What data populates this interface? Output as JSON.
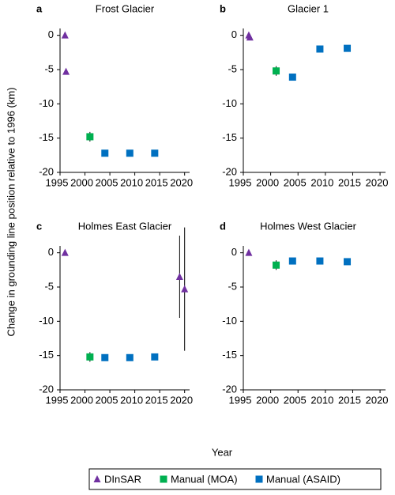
{
  "ylabel": "Change in grounding line position relative to 1996 (km)",
  "xlabel": "Year",
  "chart_data": [
    {
      "type": "scatter",
      "letter": "a",
      "title": "Frost Glacier",
      "xlim": [
        1995,
        2021
      ],
      "ylim": [
        -20,
        1
      ],
      "xticks": [
        1995,
        2000,
        2005,
        2010,
        2015,
        2020
      ],
      "yticks": [
        0,
        -5,
        -10,
        -15,
        -20
      ],
      "series": [
        {
          "name": "DInSAR",
          "color": "#7030a0",
          "marker": "triangle",
          "x": [
            1996,
            1996.2
          ],
          "values": [
            0,
            -5.3
          ],
          "errors": [
            0,
            0
          ]
        },
        {
          "name": "Manual (MOA)",
          "color": "#00b050",
          "marker": "square",
          "x": [
            2001
          ],
          "values": [
            -14.8
          ],
          "errors": [
            0.7
          ]
        },
        {
          "name": "Manual (ASAID)",
          "color": "#0070c0",
          "marker": "square",
          "x": [
            2004,
            2009,
            2014
          ],
          "values": [
            -17.2,
            -17.2,
            -17.2
          ],
          "errors": [
            0.4,
            0.4,
            0.4
          ]
        }
      ]
    },
    {
      "type": "scatter",
      "letter": "b",
      "title": "Glacier 1",
      "xlim": [
        1995,
        2021
      ],
      "ylim": [
        -20,
        1
      ],
      "xticks": [
        1995,
        2000,
        2005,
        2010,
        2015,
        2020
      ],
      "yticks": [
        0,
        -5,
        -10,
        -15,
        -20
      ],
      "series": [
        {
          "name": "DInSAR",
          "color": "#7030a0",
          "marker": "triangle",
          "x": [
            1996,
            1996.2
          ],
          "values": [
            0,
            -0.3
          ],
          "errors": [
            0,
            0
          ]
        },
        {
          "name": "Manual (MOA)",
          "color": "#00b050",
          "marker": "square",
          "x": [
            2001
          ],
          "values": [
            -5.2
          ],
          "errors": [
            0.7
          ]
        },
        {
          "name": "Manual (ASAID)",
          "color": "#0070c0",
          "marker": "square",
          "x": [
            2004,
            2009,
            2014
          ],
          "values": [
            -6.1,
            -2.0,
            -1.9
          ],
          "errors": [
            0.4,
            0.4,
            0.4
          ]
        }
      ]
    },
    {
      "type": "scatter",
      "letter": "c",
      "title": "Holmes East Glacier",
      "xlim": [
        1995,
        2021
      ],
      "ylim": [
        -20,
        1
      ],
      "xticks": [
        1995,
        2000,
        2005,
        2010,
        2015,
        2020
      ],
      "yticks": [
        0,
        -5,
        -10,
        -15,
        -20
      ],
      "series": [
        {
          "name": "DInSAR",
          "color": "#7030a0",
          "marker": "triangle",
          "x": [
            1996,
            2019,
            2020
          ],
          "values": [
            0,
            -3.5,
            -5.3
          ],
          "errors": [
            0,
            6,
            9
          ]
        },
        {
          "name": "Manual (MOA)",
          "color": "#00b050",
          "marker": "square",
          "x": [
            2001
          ],
          "values": [
            -15.2
          ],
          "errors": [
            0.7
          ]
        },
        {
          "name": "Manual (ASAID)",
          "color": "#0070c0",
          "marker": "square",
          "x": [
            2004,
            2009,
            2014
          ],
          "values": [
            -15.3,
            -15.3,
            -15.2
          ],
          "errors": [
            0.4,
            0.4,
            0.4
          ]
        }
      ]
    },
    {
      "type": "scatter",
      "letter": "d",
      "title": "Holmes West Glacier",
      "xlim": [
        1995,
        2021
      ],
      "ylim": [
        -20,
        1
      ],
      "xticks": [
        1995,
        2000,
        2005,
        2010,
        2015,
        2020
      ],
      "yticks": [
        0,
        -5,
        -10,
        -15,
        -20
      ],
      "series": [
        {
          "name": "DInSAR",
          "color": "#7030a0",
          "marker": "triangle",
          "x": [
            1996
          ],
          "values": [
            0
          ],
          "errors": [
            0
          ]
        },
        {
          "name": "Manual (MOA)",
          "color": "#00b050",
          "marker": "square",
          "x": [
            2001
          ],
          "values": [
            -1.8
          ],
          "errors": [
            0.7
          ]
        },
        {
          "name": "Manual (ASAID)",
          "color": "#0070c0",
          "marker": "square",
          "x": [
            2004,
            2009,
            2014
          ],
          "values": [
            -1.2,
            -1.2,
            -1.3
          ],
          "errors": [
            0.4,
            0.4,
            0.4
          ]
        }
      ]
    }
  ]
}
